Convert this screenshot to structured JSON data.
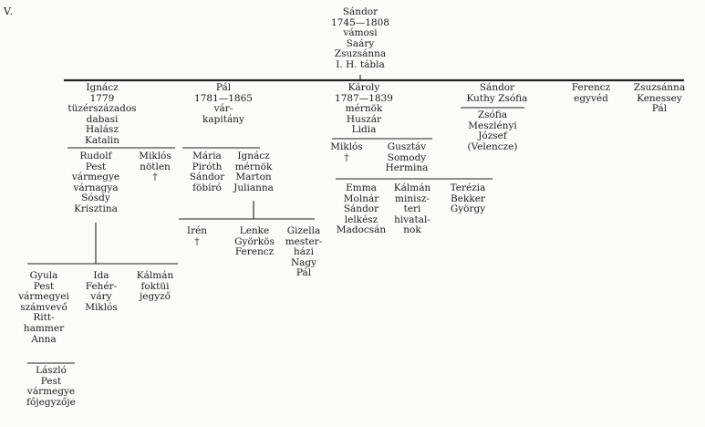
{
  "page": {
    "label": "V."
  },
  "root": {
    "lines": [
      "Sándor",
      "1745—1808",
      "vámosi",
      "Saáry",
      "Zsuzsánna",
      "I. H. tábla"
    ]
  },
  "generation1": [
    {
      "id": "ignacz",
      "lines": [
        "Ignácz",
        "1779",
        "tüzérszázados",
        "dabasi",
        "Halász",
        "Katalin"
      ]
    },
    {
      "id": "pal",
      "lines": [
        "Pál",
        "1781—1865",
        "vár-",
        "kapitány"
      ]
    },
    {
      "id": "karoly",
      "lines": [
        "Károly",
        "1787—1839",
        "mérnök",
        "Huszár",
        "Lidia"
      ]
    },
    {
      "id": "sandor",
      "lines": [
        "Sándor",
        "Kuthy Zsófia"
      ]
    },
    {
      "id": "ferencz",
      "lines": [
        "Ferencz",
        "egyvéd"
      ]
    },
    {
      "id": "zsuzsanna",
      "lines": [
        "Zsuzsánna",
        "Kenessey",
        "Pál"
      ]
    }
  ],
  "ignacz_children": [
    {
      "id": "rudolf",
      "lines": [
        "Rudolf",
        "Pest",
        "vármegye",
        "várnagya",
        "Sósdy",
        "Krisztina"
      ]
    },
    {
      "id": "miklos1",
      "lines": [
        "Miklós",
        "nötlen",
        "†"
      ]
    }
  ],
  "pal_children": [
    {
      "id": "maria",
      "lines": [
        "Mária",
        "Piróth",
        "Sándor",
        "föbíró"
      ]
    },
    {
      "id": "ignacz2",
      "lines": [
        "Ignácz",
        "mérnök",
        "Marton",
        "Julianna"
      ]
    }
  ],
  "ignacz2_children": [
    {
      "id": "iren",
      "lines": [
        "Irén",
        "†"
      ]
    },
    {
      "id": "lenke",
      "lines": [
        "Lenke",
        "Györkös",
        "Ferencz"
      ]
    },
    {
      "id": "gizella",
      "lines": [
        "Gizella",
        "mester-",
        "házi",
        "Nagy",
        "Pál"
      ]
    }
  ],
  "karoly_children": [
    {
      "id": "miklos2",
      "lines": [
        "Miklós",
        "†"
      ]
    },
    {
      "id": "gusztav",
      "lines": [
        "Gusztáv",
        "Somody",
        "Hermina"
      ]
    }
  ],
  "gusztav_children": [
    {
      "id": "emma",
      "lines": [
        "Emma",
        "Molnár",
        "Sándor",
        "lelkész",
        "Madocsán"
      ]
    },
    {
      "id": "kalman1",
      "lines": [
        "Kálmán",
        "minisz-",
        "teri",
        "hivatal-",
        "nok"
      ]
    },
    {
      "id": "terezia",
      "lines": [
        "Terézia",
        "Bekker",
        "György"
      ]
    }
  ],
  "sandor_children": [
    {
      "id": "zsofia",
      "lines": [
        "Zsófia",
        "Meszlényi",
        "József",
        "(Velencze)"
      ]
    }
  ],
  "rudolf_children": [
    {
      "id": "gyula",
      "lines": [
        "Gyula",
        "Pest",
        "vármegyei",
        "számvevő",
        "Ritt-",
        "hammer",
        "Anna"
      ]
    },
    {
      "id": "ida",
      "lines": [
        "Ida",
        "Fehér-",
        "váry",
        "Miklós"
      ]
    },
    {
      "id": "kalman2",
      "lines": [
        "Kálmán",
        "foktüi",
        "jegyző"
      ]
    }
  ],
  "gyula_children": [
    {
      "id": "laszlo",
      "lines": [
        "László",
        "Pest",
        "vármegye",
        "főjegyzője"
      ]
    }
  ]
}
